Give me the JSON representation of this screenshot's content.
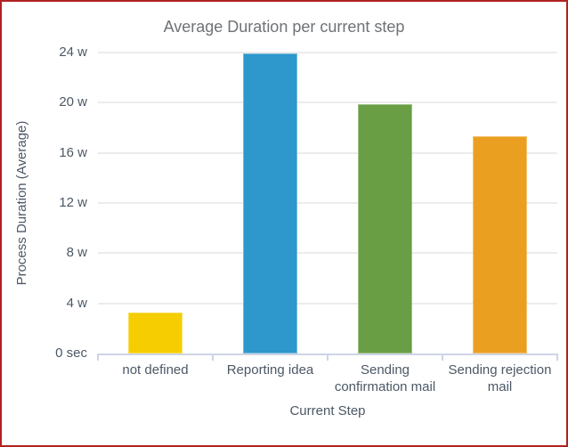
{
  "window": {
    "border_color": "#b22222",
    "background_color": "#ffffff"
  },
  "chart_data": {
    "type": "bar",
    "title": "Average Duration per current step",
    "xlabel": "Current Step",
    "ylabel": "Process Duration (Average)",
    "categories": [
      "not defined",
      "Reporting idea",
      "Sending confirmation mail",
      "Sending rejection mail"
    ],
    "values": [
      3.3,
      23.9,
      19.9,
      17.3
    ],
    "unit": "w",
    "bar_colors": [
      "#f5cd01",
      "#2e97cc",
      "#699e45",
      "#eb9f20"
    ],
    "y_ticks": [
      {
        "value": 0,
        "label": "0 sec"
      },
      {
        "value": 4,
        "label": "4 w"
      },
      {
        "value": 8,
        "label": "8 w"
      },
      {
        "value": 12,
        "label": "12 w"
      },
      {
        "value": 16,
        "label": "16 w"
      },
      {
        "value": 20,
        "label": "20 w"
      },
      {
        "value": 24,
        "label": "24 w"
      }
    ],
    "ylim": [
      0,
      24
    ],
    "grid": true,
    "legend": "none",
    "colors": {
      "grid": "#ececec",
      "axis_line": "#ccd5e5",
      "tick_text": "#4c5866",
      "title_text": "#6f7276"
    }
  }
}
